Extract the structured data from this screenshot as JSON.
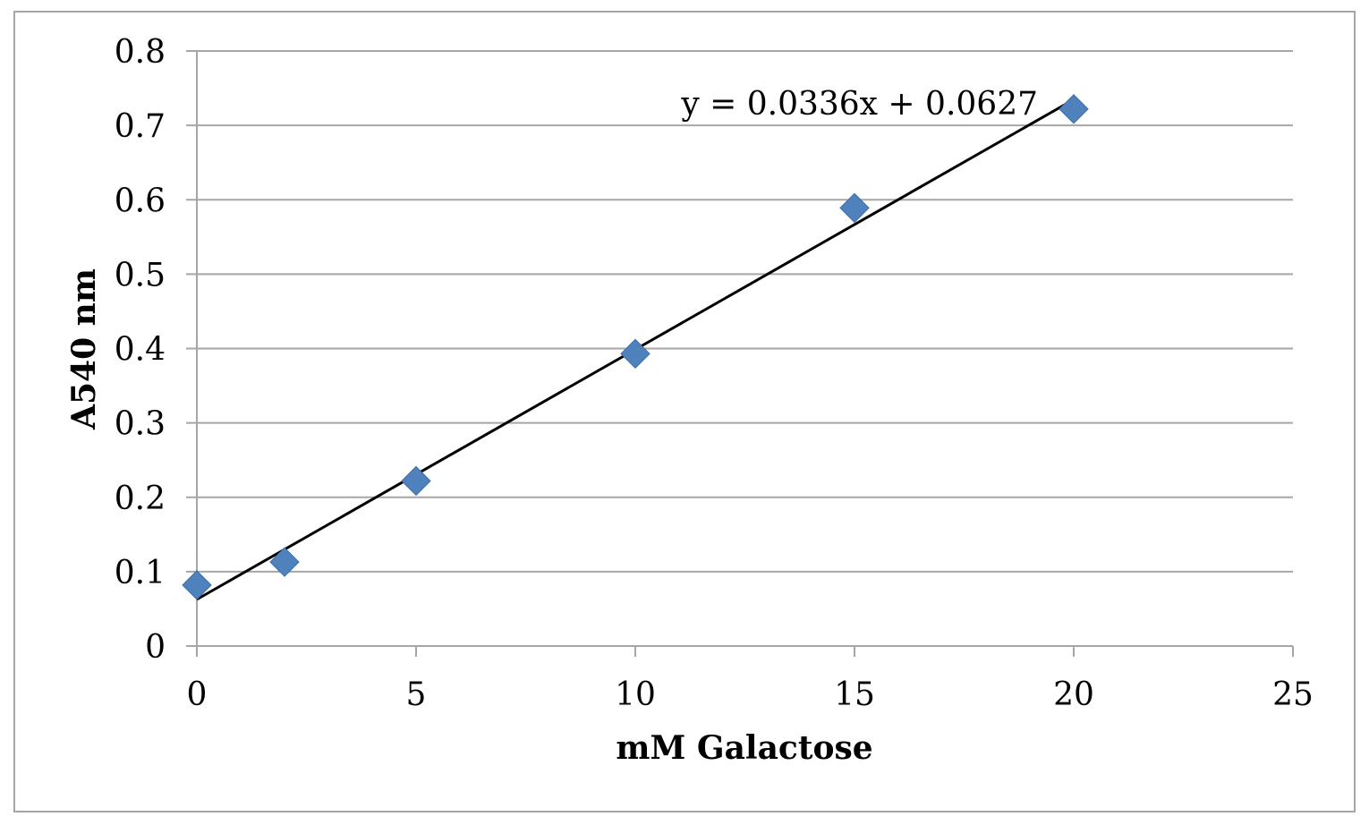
{
  "chart_data": {
    "type": "scatter",
    "xlabel": "mM Galactose",
    "ylabel": "A540 nm",
    "xlim": [
      0,
      25
    ],
    "ylim": [
      0,
      0.8
    ],
    "xticks": [
      0,
      5,
      10,
      15,
      20,
      25
    ],
    "yticks": [
      0,
      0.1,
      0.2,
      0.3,
      0.4,
      0.5,
      0.6,
      0.7,
      0.8
    ],
    "grid": "horizontal",
    "series": [
      {
        "marker": "diamond",
        "color": "#4f81bd",
        "x": [
          0,
          2,
          5,
          10,
          15,
          20
        ],
        "y": [
          0.082,
          0.113,
          0.222,
          0.393,
          0.589,
          0.722
        ]
      }
    ],
    "trendline": {
      "slope": 0.0336,
      "intercept": 0.0627,
      "color": "#000000",
      "equation_label": "y = 0.0336x + 0.0627"
    }
  }
}
